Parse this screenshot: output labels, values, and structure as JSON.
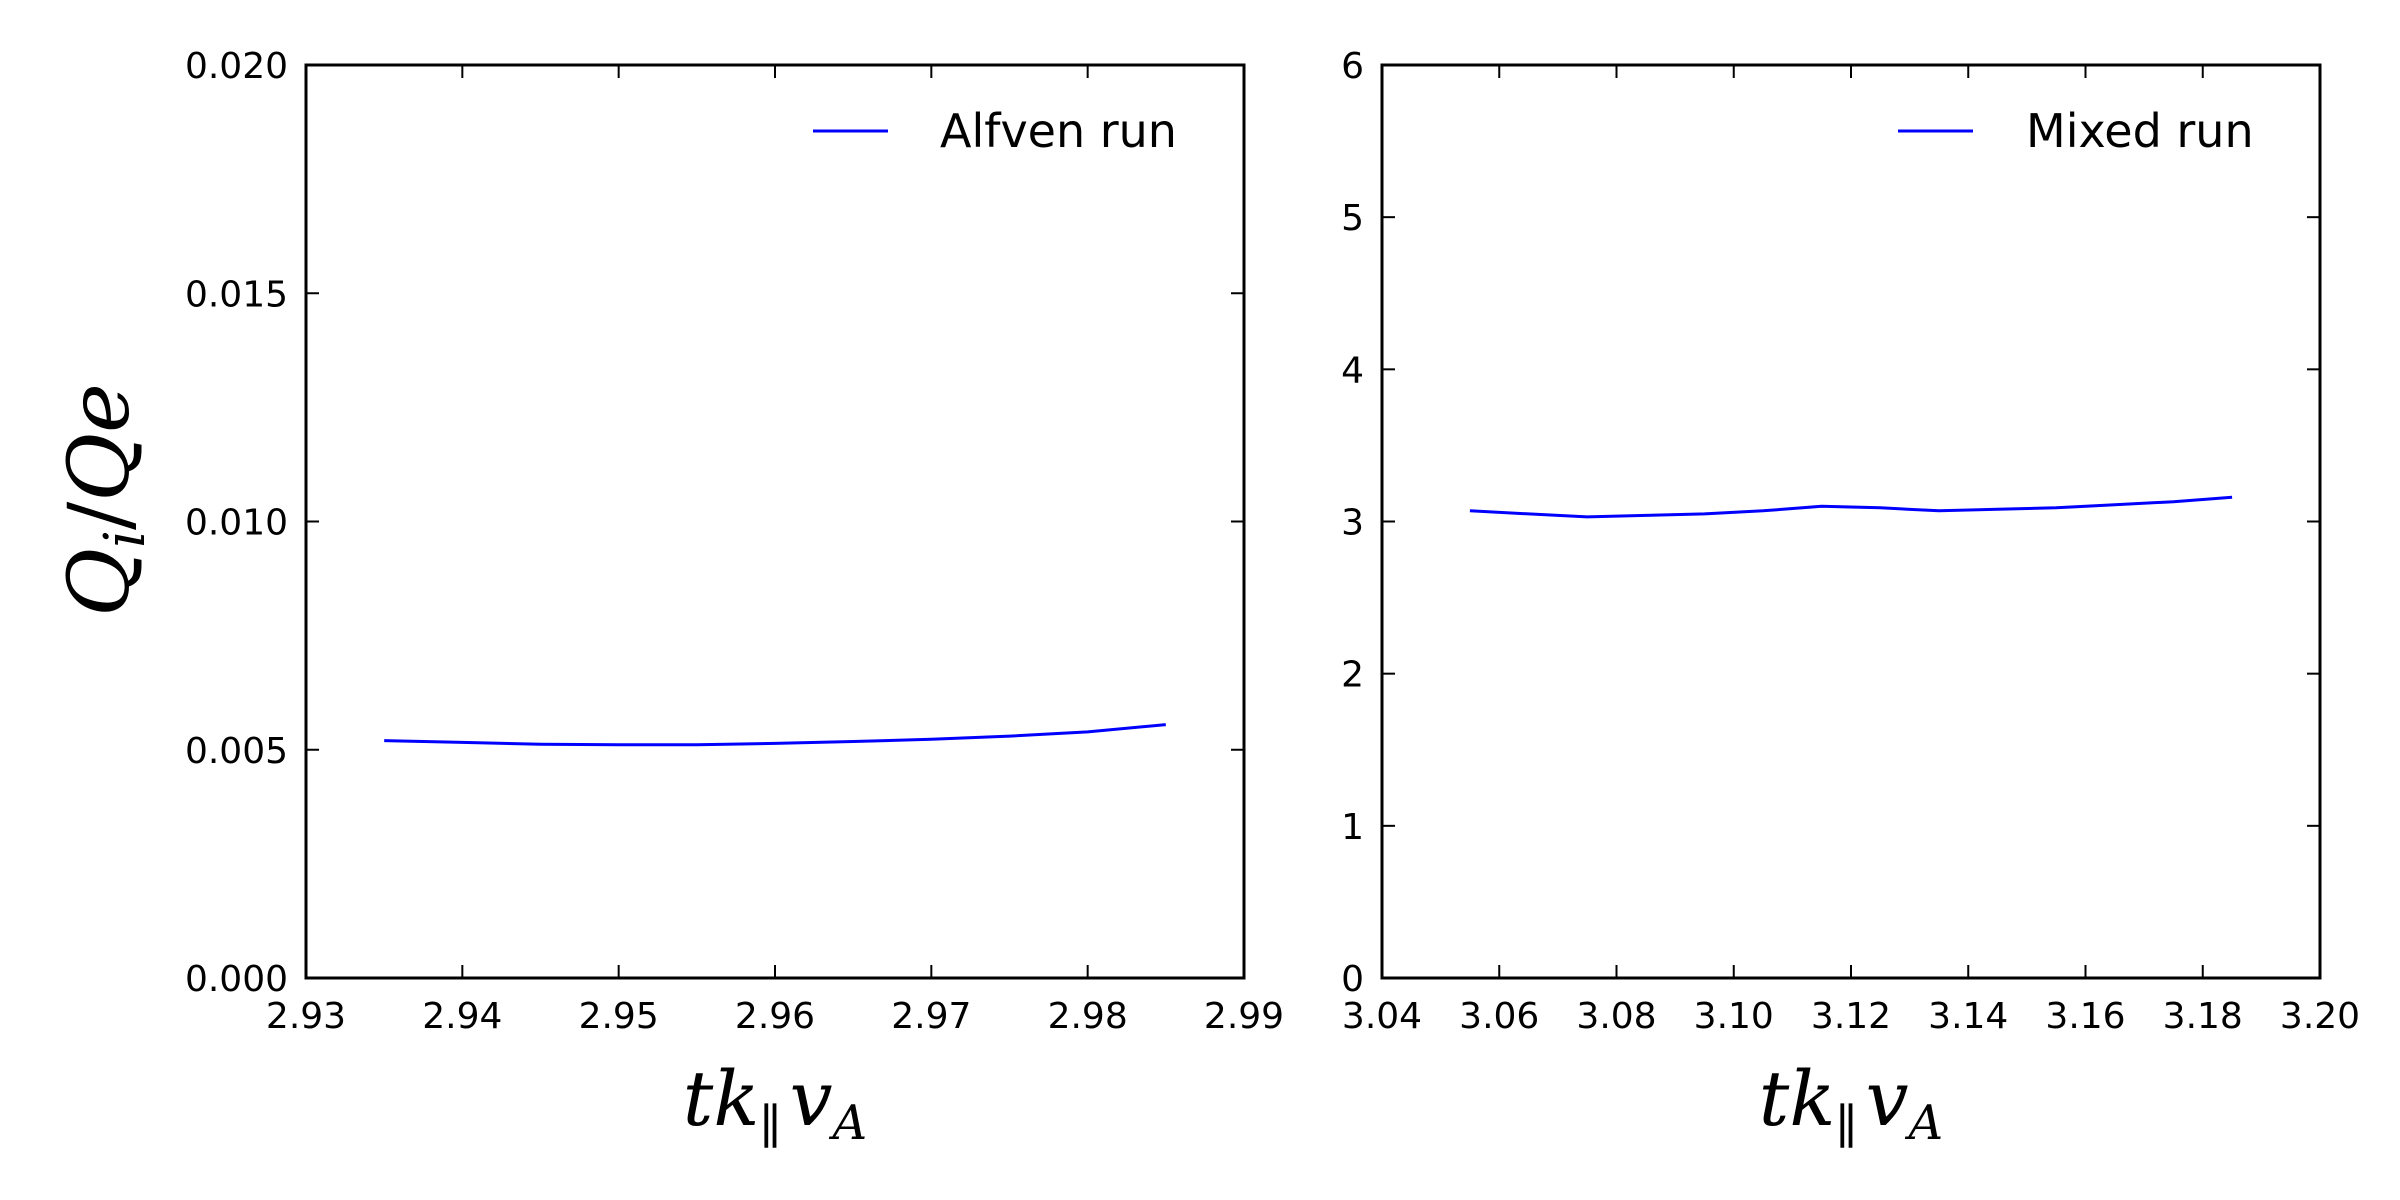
{
  "figure": {
    "ylabel": {
      "Q": "Q",
      "i": "i",
      "slash": "/",
      "Qe": "Qe"
    }
  },
  "chart_data": [
    {
      "type": "line",
      "xlabel": {
        "t": "t",
        "k": "k",
        "par": "∥",
        "v": "v",
        "A": "A"
      },
      "ylabel": "Qi/Qe",
      "xlim": [
        2.93,
        2.99
      ],
      "ylim": [
        0.0,
        0.02
      ],
      "xticks": [
        2.93,
        2.94,
        2.95,
        2.96,
        2.97,
        2.98,
        2.99
      ],
      "xtick_labels": [
        "2.93",
        "2.94",
        "2.95",
        "2.96",
        "2.97",
        "2.98",
        "2.99"
      ],
      "yticks": [
        0.0,
        0.005,
        0.01,
        0.015,
        0.02
      ],
      "ytick_labels": [
        "0.000",
        "0.005",
        "0.010",
        "0.015",
        "0.020"
      ],
      "grid": false,
      "legend_position": "top-right",
      "series": [
        {
          "name": "Alfven run",
          "color": "#0000ff",
          "x": [
            2.935,
            2.94,
            2.945,
            2.95,
            2.955,
            2.96,
            2.965,
            2.97,
            2.975,
            2.98,
            2.985
          ],
          "y": [
            0.0052,
            0.00516,
            0.00512,
            0.00511,
            0.00511,
            0.00514,
            0.00518,
            0.00523,
            0.0053,
            0.00539,
            0.00555
          ]
        }
      ]
    },
    {
      "type": "line",
      "xlabel": {
        "t": "t",
        "k": "k",
        "par": "∥",
        "v": "v",
        "A": "A"
      },
      "xlim": [
        3.04,
        3.2
      ],
      "ylim": [
        0,
        6
      ],
      "xticks": [
        3.04,
        3.06,
        3.08,
        3.1,
        3.12,
        3.14,
        3.16,
        3.18,
        3.2
      ],
      "xtick_labels": [
        "3.04",
        "3.06",
        "3.08",
        "3.10",
        "3.12",
        "3.14",
        "3.16",
        "3.18",
        "3.20"
      ],
      "yticks": [
        0,
        1,
        2,
        3,
        4,
        5,
        6
      ],
      "ytick_labels": [
        "0",
        "1",
        "2",
        "3",
        "4",
        "5",
        "6"
      ],
      "grid": false,
      "legend_position": "top-right",
      "series": [
        {
          "name": "Mixed run",
          "color": "#0000ff",
          "x": [
            3.055,
            3.065,
            3.075,
            3.085,
            3.095,
            3.105,
            3.115,
            3.125,
            3.135,
            3.145,
            3.155,
            3.165,
            3.175,
            3.185
          ],
          "y": [
            3.07,
            3.05,
            3.03,
            3.04,
            3.05,
            3.07,
            3.1,
            3.09,
            3.07,
            3.08,
            3.09,
            3.11,
            3.13,
            3.16
          ]
        }
      ]
    }
  ]
}
